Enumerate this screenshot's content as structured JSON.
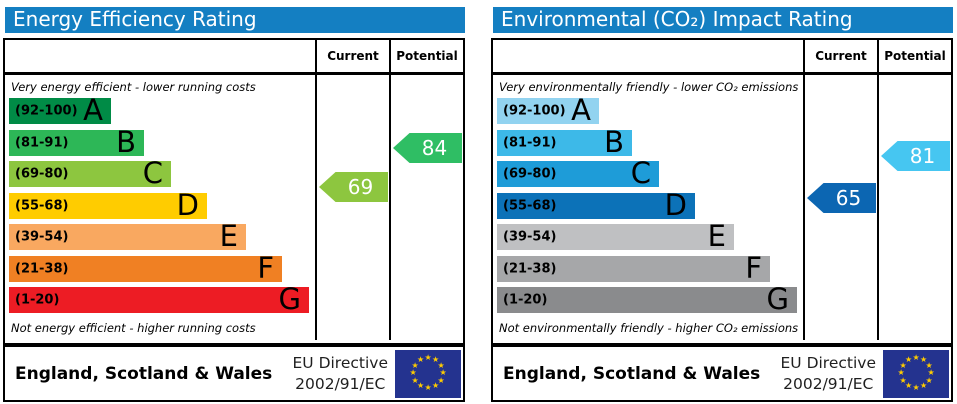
{
  "columns": {
    "current": "Current",
    "potential": "Potential"
  },
  "panels": [
    {
      "id": "energy-efficiency",
      "title": "Energy Efficiency Rating",
      "top_note": "Very energy efficient - lower running costs",
      "bottom_note": "Not energy efficient - higher running costs",
      "bands": [
        {
          "letter": "A",
          "range": "(92-100)",
          "color": "#008b46",
          "width_pct": 34
        },
        {
          "letter": "B",
          "range": "(81-91)",
          "color": "#2db757",
          "width_pct": 45
        },
        {
          "letter": "C",
          "range": "(69-80)",
          "color": "#8dc63f",
          "width_pct": 54
        },
        {
          "letter": "D",
          "range": "(55-68)",
          "color": "#ffcc00",
          "width_pct": 66
        },
        {
          "letter": "E",
          "range": "(39-54)",
          "color": "#f9a860",
          "width_pct": 79
        },
        {
          "letter": "F",
          "range": "(21-38)",
          "color": "#f08023",
          "width_pct": 91
        },
        {
          "letter": "G",
          "range": "(1-20)",
          "color": "#ed1c24",
          "width_pct": 100
        }
      ],
      "current": {
        "value": 69,
        "color": "#8dc63f"
      },
      "potential": {
        "value": 84,
        "color": "#2fbe64"
      },
      "footer": {
        "region": "England, Scotland & Wales",
        "directive_line1": "EU Directive",
        "directive_line2": "2002/91/EC"
      }
    },
    {
      "id": "environmental-impact",
      "title": "Environmental (CO₂) Impact Rating",
      "top_note": "Very environmentally friendly - lower CO₂ emissions",
      "bottom_note": "Not environmentally friendly - higher CO₂ emissions",
      "bands": [
        {
          "letter": "A",
          "range": "(92-100)",
          "color": "#92d3f0",
          "width_pct": 34
        },
        {
          "letter": "B",
          "range": "(81-91)",
          "color": "#3db9e8",
          "width_pct": 45
        },
        {
          "letter": "C",
          "range": "(69-80)",
          "color": "#1e9cd8",
          "width_pct": 54
        },
        {
          "letter": "D",
          "range": "(55-68)",
          "color": "#0c72b8",
          "width_pct": 66
        },
        {
          "letter": "E",
          "range": "(39-54)",
          "color": "#bfc0c2",
          "width_pct": 79
        },
        {
          "letter": "F",
          "range": "(21-38)",
          "color": "#a6a7a9",
          "width_pct": 91
        },
        {
          "letter": "G",
          "range": "(1-20)",
          "color": "#8a8b8d",
          "width_pct": 100
        }
      ],
      "current": {
        "value": 65,
        "color": "#0c66b2"
      },
      "potential": {
        "value": 81,
        "color": "#46c6f1"
      },
      "footer": {
        "region": "England, Scotland & Wales",
        "directive_line1": "EU Directive",
        "directive_line2": "2002/91/EC"
      }
    }
  ],
  "chart_data": [
    {
      "type": "bar",
      "title": "Energy Efficiency Rating",
      "categories": [
        "A (92-100)",
        "B (81-91)",
        "C (69-80)",
        "D (55-68)",
        "E (39-54)",
        "F (21-38)",
        "G (1-20)"
      ],
      "values": [
        34,
        45,
        54,
        66,
        79,
        91,
        100
      ],
      "markers": {
        "current": 69,
        "potential": 84
      },
      "xlabel": "",
      "ylabel": "",
      "xlim": [
        1,
        100
      ],
      "annotations": [
        "Very energy efficient - lower running costs",
        "Not energy efficient - higher running costs",
        "England, Scotland & Wales",
        "EU Directive 2002/91/EC"
      ]
    },
    {
      "type": "bar",
      "title": "Environmental (CO₂) Impact Rating",
      "categories": [
        "A (92-100)",
        "B (81-91)",
        "C (69-80)",
        "D (55-68)",
        "E (39-54)",
        "F (21-38)",
        "G (1-20)"
      ],
      "values": [
        34,
        45,
        54,
        66,
        79,
        91,
        100
      ],
      "markers": {
        "current": 65,
        "potential": 81
      },
      "xlabel": "",
      "ylabel": "",
      "xlim": [
        1,
        100
      ],
      "annotations": [
        "Very environmentally friendly - lower CO₂ emissions",
        "Not environmentally friendly - higher CO₂ emissions",
        "England, Scotland & Wales",
        "EU Directive 2002/91/EC"
      ]
    }
  ]
}
